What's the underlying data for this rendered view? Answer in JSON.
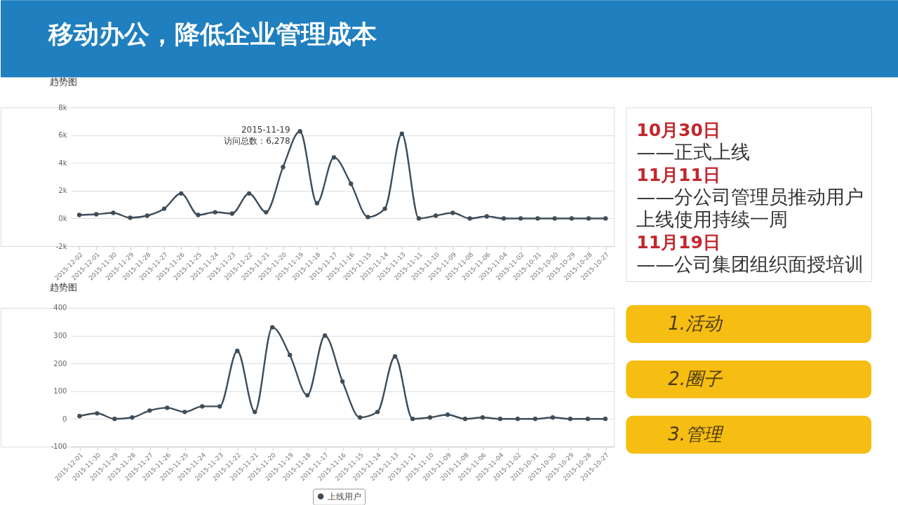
{
  "chart_data": [
    {
      "type": "other",
      "title": "移动办公，降低企业管理成本"
    },
    {
      "type": "line",
      "title": "趋势图",
      "categories": [
        "2015-12-02",
        "2015-12-01",
        "2015-11-30",
        "2015-11-29",
        "2015-11-28",
        "2015-11-27",
        "2015-11-26",
        "2015-11-25",
        "2015-11-24",
        "2015-11-23",
        "2015-11-22",
        "2015-11-21",
        "2015-11-20",
        "2015-11-19",
        "2015-11-18",
        "2015-11-17",
        "2015-11-16",
        "2015-11-15",
        "2015-11-14",
        "2015-11-13",
        "2015-11-11",
        "2015-11-10",
        "2015-11-09",
        "2015-11-08",
        "2015-11-06",
        "2015-11-04",
        "2015-11-02",
        "2015-10-31",
        "2015-10-30",
        "2015-10-29",
        "2015-10-28",
        "2015-10-27"
      ],
      "series": [
        {
          "color": "#3e4d5a",
          "values": [
            250,
            300,
            400,
            50,
            200,
            700,
            1800,
            250,
            450,
            350,
            1800,
            450,
            3700,
            6278,
            1100,
            4400,
            2500,
            100,
            700,
            6100,
            0,
            200,
            400,
            0,
            150,
            0,
            0,
            0,
            0,
            0,
            0,
            0
          ]
        }
      ],
      "ylim": [
        -2000,
        8000
      ],
      "yticks": [
        {
          "value": 8000,
          "label": "8k"
        },
        {
          "value": 6000,
          "label": "6k"
        },
        {
          "value": 4000,
          "label": "4k"
        },
        {
          "value": 2000,
          "label": "2k"
        },
        {
          "value": 0,
          "label": "0k"
        },
        {
          "value": -2000,
          "label": "-2k"
        }
      ],
      "grid": "y",
      "marker": "circle",
      "line_style": "solid",
      "legend": false,
      "annotations": [
        {
          "text": "2015-11-19\n访问总数：6,278",
          "x": "2015-11-19",
          "y": 6278
        }
      ]
    },
    {
      "type": "line",
      "title": "趋势图",
      "categories": [
        "2015-12-01",
        "2015-11-30",
        "2015-11-29",
        "2015-11-28",
        "2015-11-27",
        "2015-11-26",
        "2015-11-25",
        "2015-11-24",
        "2015-11-23",
        "2015-11-22",
        "2015-11-21",
        "2015-11-20",
        "2015-11-19",
        "2015-11-18",
        "2015-11-17",
        "2015-11-16",
        "2015-11-15",
        "2015-11-14",
        "2015-11-13",
        "2015-11-11",
        "2015-11-10",
        "2015-11-09",
        "2015-11-08",
        "2015-11-06",
        "2015-11-04",
        "2015-11-02",
        "2015-10-31",
        "2015-10-30",
        "2015-10-29",
        "2015-10-28",
        "2015-10-27"
      ],
      "series": [
        {
          "name": "上线用户",
          "color": "#3e4d5a",
          "values": [
            10,
            20,
            0,
            5,
            30,
            40,
            25,
            45,
            45,
            245,
            25,
            330,
            230,
            85,
            300,
            135,
            5,
            25,
            225,
            0,
            5,
            15,
            0,
            5,
            0,
            0,
            0,
            5,
            0,
            0,
            0
          ]
        }
      ],
      "ylim": [
        -100,
        400
      ],
      "yticks": [
        400,
        300,
        200,
        100,
        0,
        -100
      ],
      "grid": "y",
      "marker": "circle",
      "line_style": "solid",
      "legend": "bottom"
    },
    {
      "type": "other",
      "annotations": [
        "10月30日",
        "——正式上线",
        "11月11日",
        "——分公司管理员推动用户",
        "上线使用持续一周",
        "11月19日",
        "——公司集团组织面授培训"
      ]
    },
    {
      "type": "other",
      "annotations": [
        "1.活动",
        "2.圈子",
        "3.管理"
      ]
    }
  ]
}
